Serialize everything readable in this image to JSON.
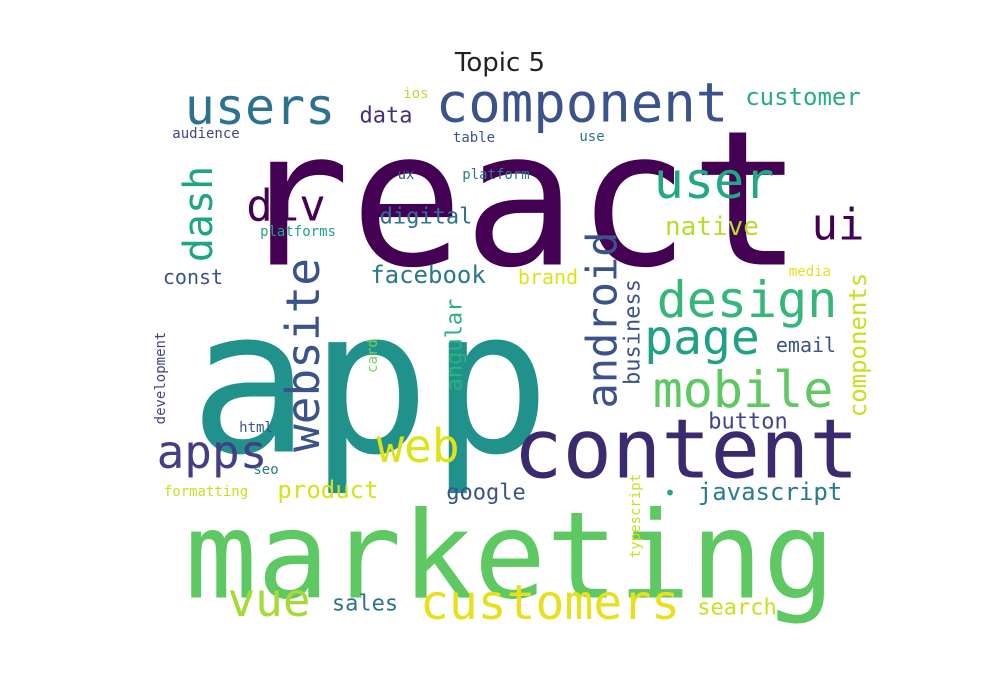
{
  "title": "Topic 5",
  "words": [
    {
      "text": "react",
      "color": "#440154"
    },
    {
      "text": "app",
      "color": "#21918c"
    },
    {
      "text": "marketing",
      "color": "#5ec962"
    },
    {
      "text": "content",
      "color": "#3b2a6e"
    },
    {
      "text": "component",
      "color": "#3b528b"
    },
    {
      "text": "users",
      "color": "#2c728e"
    },
    {
      "text": "user",
      "color": "#22a884"
    },
    {
      "text": "design",
      "color": "#35b779"
    },
    {
      "text": "mobile",
      "color": "#5ec962"
    },
    {
      "text": "website",
      "color": "#3b528b"
    },
    {
      "text": "customers",
      "color": "#e8e01e"
    },
    {
      "text": "android",
      "color": "#3b528b"
    },
    {
      "text": "page",
      "color": "#1fa187"
    },
    {
      "text": "web",
      "color": "#dde318"
    },
    {
      "text": "apps",
      "color": "#433e85"
    },
    {
      "text": "vue",
      "color": "#a5db36"
    },
    {
      "text": "ui",
      "color": "#440154"
    },
    {
      "text": "dash",
      "color": "#20a486"
    },
    {
      "text": "div",
      "color": "#440154"
    },
    {
      "text": "customer",
      "color": "#27ad81"
    },
    {
      "text": "native",
      "color": "#b5de2b"
    },
    {
      "text": "facebook",
      "color": "#2a788e"
    },
    {
      "text": "digital",
      "color": "#2c728e"
    },
    {
      "text": "data",
      "color": "#472d7b"
    },
    {
      "text": "components",
      "color": "#c8e020"
    },
    {
      "text": "javascript",
      "color": "#297b8e"
    },
    {
      "text": "product",
      "color": "#d8e219"
    },
    {
      "text": "google",
      "color": "#3b528b"
    },
    {
      "text": "button",
      "color": "#414487"
    },
    {
      "text": "search",
      "color": "#c8e020"
    },
    {
      "text": "sales",
      "color": "#2c728e"
    },
    {
      "text": "angular",
      "color": "#2db27d"
    },
    {
      "text": "business",
      "color": "#3b528b"
    },
    {
      "text": "email",
      "color": "#3b528b"
    },
    {
      "text": "brand",
      "color": "#dde318"
    },
    {
      "text": "const",
      "color": "#3b528b"
    },
    {
      "text": "platforms",
      "color": "#20a486"
    },
    {
      "text": "platform",
      "color": "#2a788e"
    },
    {
      "text": "ux",
      "color": "#3b528b"
    },
    {
      "text": "table",
      "color": "#3b528b"
    },
    {
      "text": "use",
      "color": "#2c728e"
    },
    {
      "text": "ios",
      "color": "#b5de2b"
    },
    {
      "text": "audience",
      "color": "#414487"
    },
    {
      "text": "media",
      "color": "#e8e01e"
    },
    {
      "text": "card",
      "color": "#7ad151"
    },
    {
      "text": "development",
      "color": "#414487"
    },
    {
      "text": "html",
      "color": "#3b528b"
    },
    {
      "text": "seo",
      "color": "#2a788e"
    },
    {
      "text": "formatting",
      "color": "#c8e020"
    },
    {
      "text": "typescript",
      "color": "#c8e020"
    },
    {
      "text": "•",
      "color": "#22a884"
    }
  ]
}
